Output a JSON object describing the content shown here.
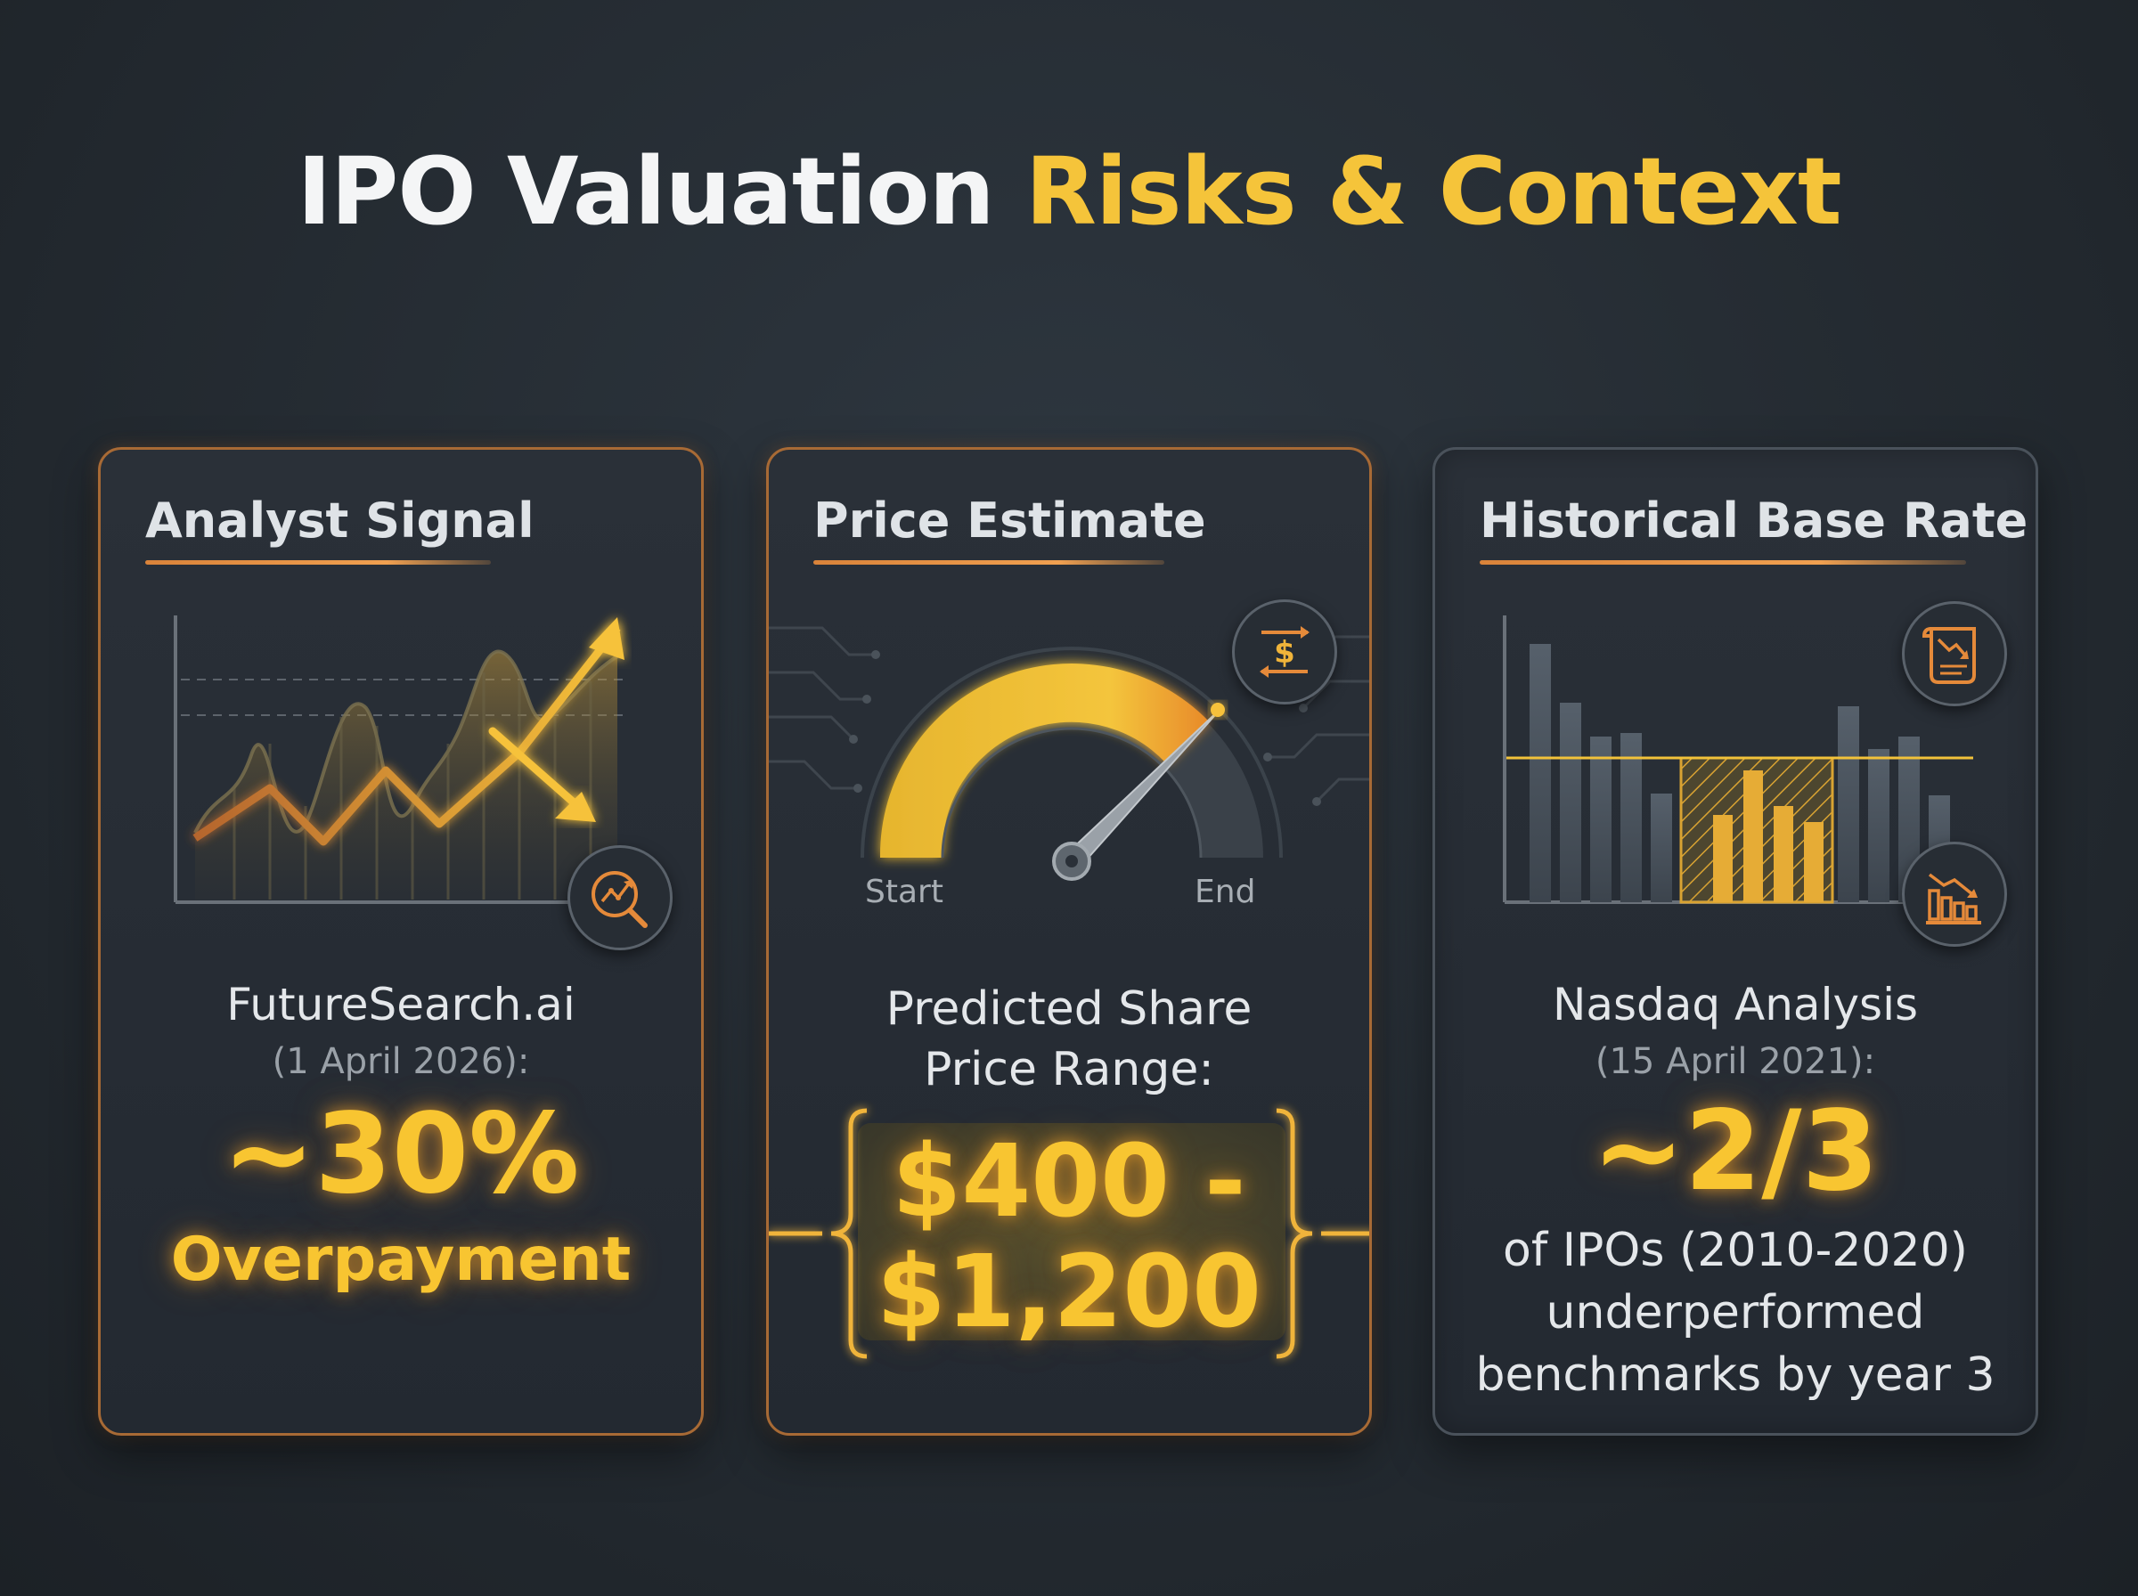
{
  "title": {
    "main": "IPO Valuation",
    "accent": "Risks & Context"
  },
  "colors": {
    "accent": "#f5c43a",
    "orange": "#e58a3a",
    "panel": "#272d34",
    "bar": "#4e5864"
  },
  "cards": [
    {
      "heading": "Analyst Signal",
      "icon": "magnifier-chart-icon",
      "source": "FutureSearch.ai",
      "date": "(1 April 2026):",
      "value": "~30%",
      "value_label": "Overpayment"
    },
    {
      "heading": "Price Estimate",
      "icon": "dollar-exchange-icon",
      "gauge_start": "Start",
      "gauge_end": "End",
      "label_line1": "Predicted Share",
      "label_line2": "Price Range:",
      "value_line1": "$400 -",
      "value_line2": "$1,200"
    },
    {
      "heading": "Historical Base Rate",
      "icons": [
        "document-down-trend-icon",
        "bar-chart-decline-icon"
      ],
      "source": "Nasdaq Analysis",
      "date": "(15 April 2021):",
      "value": "~2/3",
      "desc_line1": "of IPOs (2010-2020)",
      "desc_line2": "underperformed",
      "desc_line3": "benchmarks by year 3"
    }
  ]
}
